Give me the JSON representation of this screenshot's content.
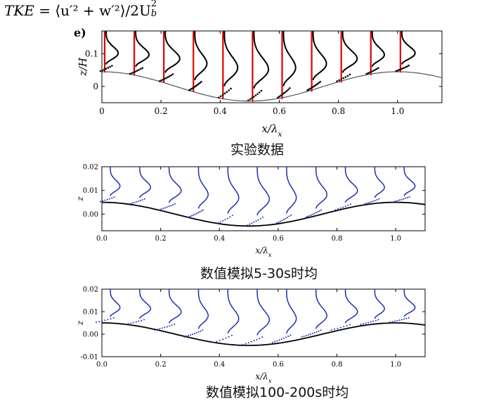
{
  "formula": {
    "lhs": "TKE",
    "rhs": "= ⟨u′² + w′²⟩/2U",
    "sub": "b",
    "sup": "2"
  },
  "chart_data": [
    {
      "type": "line",
      "panel_letter": "e)",
      "title": "实验数据",
      "xlabel": "x/λx",
      "ylabel": "z/H",
      "xlim": [
        0,
        1.15
      ],
      "ylim": [
        -0.05,
        0.17
      ],
      "xticks": [
        0,
        0.2,
        0.4,
        0.6,
        0.8,
        1.0
      ],
      "xtick_labels": [
        "0",
        "0.2",
        "0.4",
        "0.6",
        "0.8",
        "1.0"
      ],
      "yticks": [
        0,
        0.1
      ],
      "ytick_labels": [
        "0",
        "0.1"
      ],
      "wall": {
        "mean": 0.0,
        "amplitude": 0.045,
        "peak_x": 0.0
      },
      "profile_x": [
        0.0,
        0.1,
        0.2,
        0.3,
        0.4,
        0.5,
        0.6,
        0.7,
        0.8,
        0.9,
        1.0
      ],
      "series": [
        {
          "name": "reference lines",
          "color": "#e00000"
        },
        {
          "name": "TKE profiles (experiment)",
          "color": "#000000"
        }
      ]
    },
    {
      "type": "line",
      "title": "数值模拟5-30s时均",
      "xlabel": "x/λx",
      "ylabel": "z",
      "xlim": [
        0,
        1.1
      ],
      "ylim": [
        -0.007,
        0.02
      ],
      "xticks": [
        0,
        0.2,
        0.4,
        0.6,
        0.8,
        1.0
      ],
      "xtick_labels": [
        "0.0",
        "0.2",
        "0.4",
        "0.6",
        "0.8",
        "1.0"
      ],
      "yticks": [
        0,
        0.01,
        0.02
      ],
      "ytick_labels": [
        "0.00",
        "0.01",
        "0.02"
      ],
      "wall": {
        "mean": 0.0,
        "amplitude": 0.005,
        "peak_x": 0.0
      },
      "profile_x": [
        0.0,
        0.1,
        0.2,
        0.3,
        0.4,
        0.5,
        0.6,
        0.7,
        0.8,
        0.9,
        1.0
      ],
      "series": [
        {
          "name": "TKE profiles (simulation)",
          "color": "#1f2fb0"
        },
        {
          "name": "bed profile",
          "color": "#000000"
        }
      ]
    },
    {
      "type": "line",
      "title": "数值模拟100-200s时均",
      "xlabel": "x/λx",
      "ylabel": "z",
      "xlim": [
        0,
        1.1
      ],
      "ylim": [
        -0.01,
        0.02
      ],
      "xticks": [
        0,
        0.2,
        0.4,
        0.6,
        0.8,
        1.0
      ],
      "xtick_labels": [
        "0.0",
        "0.2",
        "0.4",
        "0.6",
        "0.8",
        "1.0"
      ],
      "yticks": [
        -0.01,
        0,
        0.01,
        0.02
      ],
      "ytick_labels": [
        "-0.01",
        "0.00",
        "0.01",
        "0.02"
      ],
      "wall": {
        "mean": 0.0,
        "amplitude": 0.005,
        "peak_x": 0.0
      },
      "profile_x": [
        0.0,
        0.1,
        0.2,
        0.3,
        0.4,
        0.5,
        0.6,
        0.7,
        0.8,
        0.9,
        1.0
      ],
      "series": [
        {
          "name": "TKE profiles (simulation)",
          "color": "#1f2fb0"
        },
        {
          "name": "bed profile",
          "color": "#000000"
        }
      ]
    }
  ]
}
